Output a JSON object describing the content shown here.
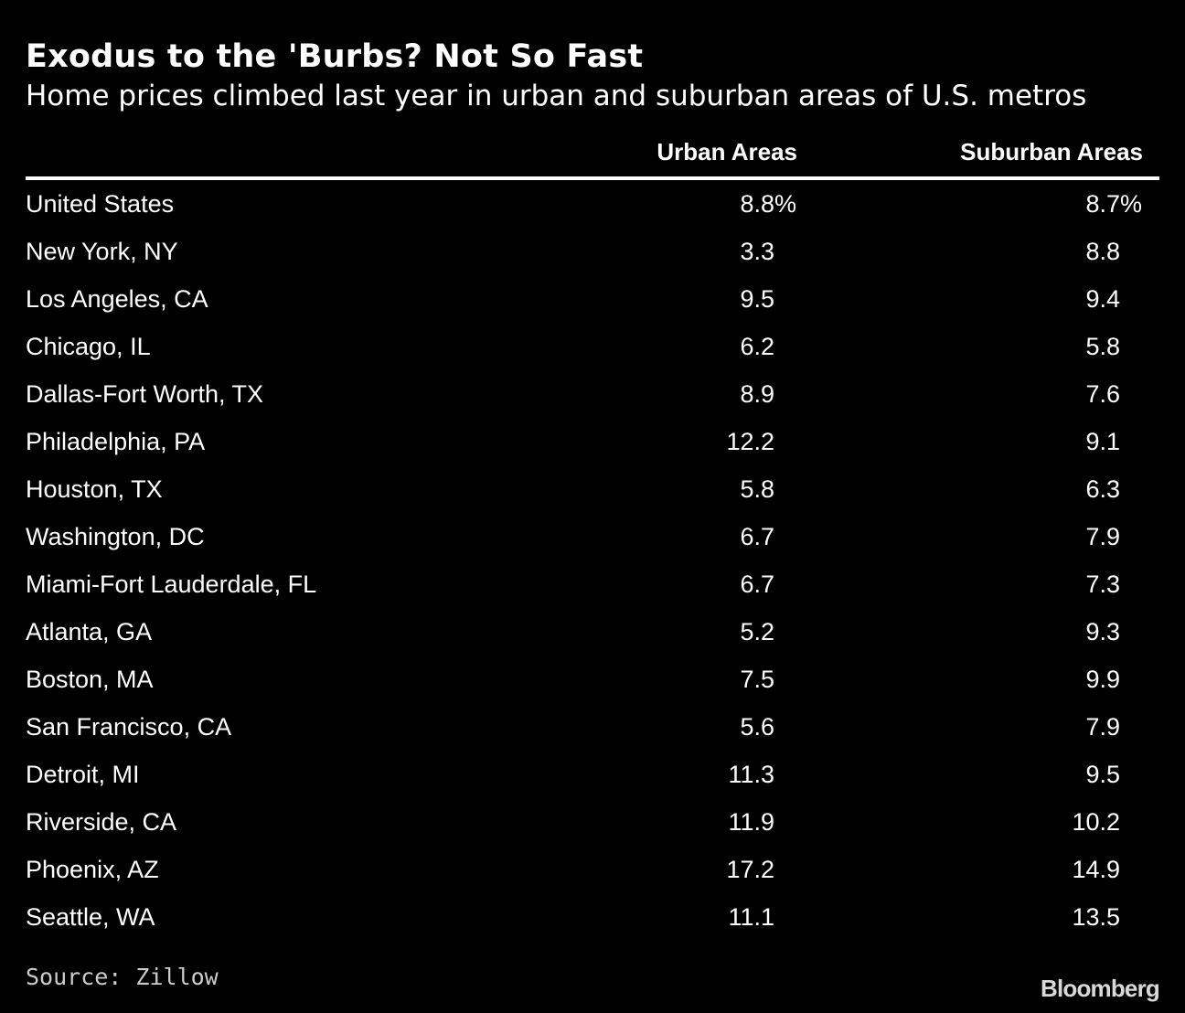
{
  "chart_data": {
    "type": "table",
    "title": "Exodus to the 'Burbs? Not So Fast",
    "subtitle": "Home prices climbed last year in urban and suburban areas of U.S. metros",
    "columns": [
      "Urban Areas",
      "Suburban Areas"
    ],
    "unit_suffix": "%",
    "rows": [
      {
        "metro": "United States",
        "urban": "8.8",
        "suburban": "8.7"
      },
      {
        "metro": "New York, NY",
        "urban": "3.3",
        "suburban": "8.8"
      },
      {
        "metro": "Los Angeles, CA",
        "urban": "9.5",
        "suburban": "9.4"
      },
      {
        "metro": "Chicago, IL",
        "urban": "6.2",
        "suburban": "5.8"
      },
      {
        "metro": "Dallas-Fort Worth, TX",
        "urban": "8.9",
        "suburban": "7.6"
      },
      {
        "metro": "Philadelphia, PA",
        "urban": "12.2",
        "suburban": "9.1"
      },
      {
        "metro": "Houston, TX",
        "urban": "5.8",
        "suburban": "6.3"
      },
      {
        "metro": "Washington, DC",
        "urban": "6.7",
        "suburban": "7.9"
      },
      {
        "metro": "Miami-Fort Lauderdale, FL",
        "urban": "6.7",
        "suburban": "7.3"
      },
      {
        "metro": "Atlanta, GA",
        "urban": "5.2",
        "suburban": "9.3"
      },
      {
        "metro": "Boston, MA",
        "urban": "7.5",
        "suburban": "9.9"
      },
      {
        "metro": "San Francisco, CA",
        "urban": "5.6",
        "suburban": "7.9"
      },
      {
        "metro": "Detroit, MI",
        "urban": "11.3",
        "suburban": "9.5"
      },
      {
        "metro": "Riverside, CA",
        "urban": "11.9",
        "suburban": "10.2"
      },
      {
        "metro": "Phoenix, AZ",
        "urban": "17.2",
        "suburban": "14.9"
      },
      {
        "metro": "Seattle, WA",
        "urban": "11.1",
        "suburban": "13.5"
      }
    ],
    "source": "Source: Zillow"
  },
  "branding": {
    "logo_text": "Bloomberg"
  },
  "colors": {
    "background": "#000000",
    "text": "#ffffff"
  }
}
